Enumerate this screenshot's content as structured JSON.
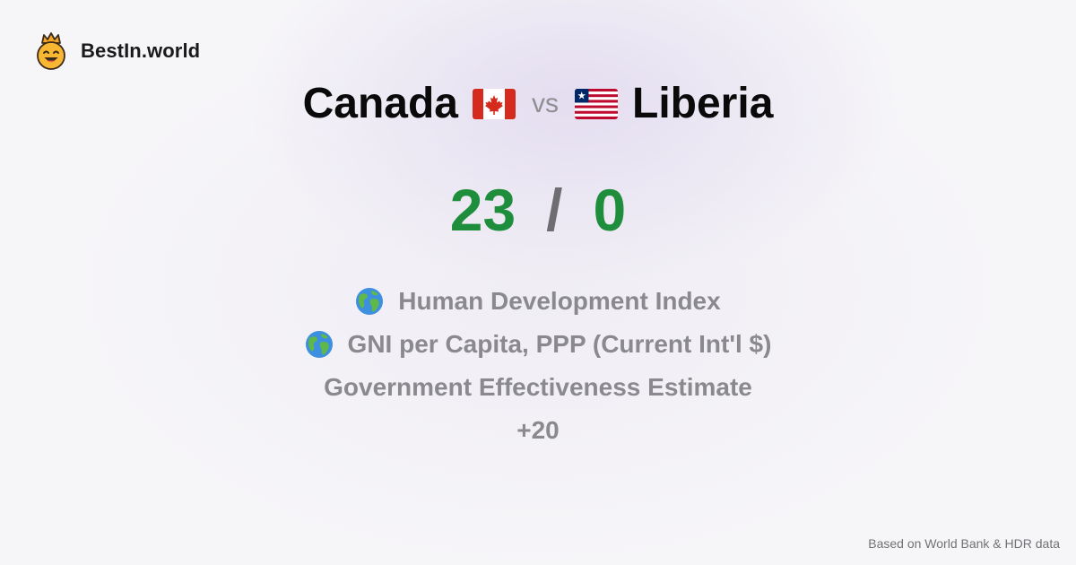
{
  "brand": {
    "name": "BestIn.world",
    "logo_icon": "crowned-smiley-icon"
  },
  "comparison": {
    "left": {
      "name": "Canada",
      "flag_icon": "canada-flag-icon"
    },
    "vs_label": "vs",
    "right": {
      "name": "Liberia",
      "flag_icon": "liberia-flag-icon"
    }
  },
  "score": {
    "left": "23",
    "separator": "/",
    "right": "0",
    "color": "#1f8e3c"
  },
  "metrics": [
    {
      "label": "Human Development Index",
      "icon": "globe-icon"
    },
    {
      "label": "GNI per Capita, PPP (Current Int'l $)",
      "icon": "globe-icon"
    },
    {
      "label": "Government Effectiveness Estimate",
      "icon": ""
    },
    {
      "label": "+20",
      "icon": ""
    }
  ],
  "footer": {
    "text": "Based on World Bank & HDR data"
  }
}
